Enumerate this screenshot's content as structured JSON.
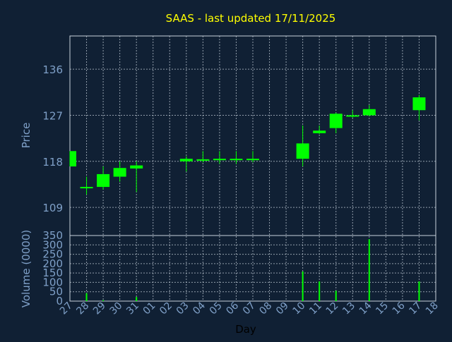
{
  "colors": {
    "background": "#102034",
    "grid": "#c8d2dc",
    "axis_text": "#7fa0c8",
    "title": "#ffff00",
    "candle": "#00ff00"
  },
  "chart_data": [
    {
      "type": "candlestick",
      "title": "SAAS - last updated 17/11/2025",
      "ylabel": "Price",
      "ylim": [
        103.5,
        142.5
      ],
      "yticks": [
        109,
        118,
        127,
        136
      ],
      "categories": [
        "27",
        "28",
        "29",
        "30",
        "31",
        "01",
        "02",
        "03",
        "04",
        "05",
        "06",
        "07",
        "08",
        "09",
        "10",
        "11",
        "12",
        "13",
        "14",
        "15",
        "16",
        "17",
        "18"
      ],
      "candles": [
        {
          "x": "27",
          "open": 117,
          "close": 120,
          "high": 120,
          "low": 117
        },
        {
          "x": "28",
          "open": 113,
          "close": 112.8,
          "high": 115,
          "low": 111.5
        },
        {
          "x": "29",
          "open": 113,
          "close": 115.5,
          "high": 117,
          "low": 112.5
        },
        {
          "x": "30",
          "open": 115,
          "close": 116.7,
          "high": 118,
          "low": 114
        },
        {
          "x": "31",
          "open": 117.2,
          "close": 116.6,
          "high": 118,
          "low": 112
        },
        {
          "x": "03",
          "open": 118.5,
          "close": 118,
          "high": 119,
          "low": 116
        },
        {
          "x": "04",
          "open": 118.4,
          "close": 118.2,
          "high": 120,
          "low": 117.8
        },
        {
          "x": "05",
          "open": 118.5,
          "close": 118.3,
          "high": 120,
          "low": 117.5
        },
        {
          "x": "06",
          "open": 118.5,
          "close": 118.3,
          "high": 120,
          "low": 117.5
        },
        {
          "x": "07",
          "open": 118.5,
          "close": 118.3,
          "high": 120,
          "low": 117.8
        },
        {
          "x": "10",
          "open": 118.5,
          "close": 121.5,
          "high": 125,
          "low": 117
        },
        {
          "x": "11",
          "open": 123.5,
          "close": 124,
          "high": 125,
          "low": 123.3
        },
        {
          "x": "12",
          "open": 124.5,
          "close": 127.3,
          "high": 127.5,
          "low": 123.5
        },
        {
          "x": "13",
          "open": 127,
          "close": 126.8,
          "high": 128,
          "low": 126.5
        },
        {
          "x": "14",
          "open": 127,
          "close": 128.2,
          "high": 129,
          "low": 126.8
        },
        {
          "x": "17",
          "open": 128,
          "close": 130.5,
          "high": 131,
          "low": 126
        }
      ]
    },
    {
      "type": "bar",
      "ylabel": "Volume (0000)",
      "xlabel": "Day",
      "ylim": [
        0,
        350
      ],
      "yticks": [
        0,
        50,
        100,
        150,
        200,
        250,
        300,
        350
      ],
      "categories": [
        "27",
        "28",
        "29",
        "30",
        "31",
        "01",
        "02",
        "03",
        "04",
        "05",
        "06",
        "07",
        "08",
        "09",
        "10",
        "11",
        "12",
        "13",
        "14",
        "15",
        "16",
        "17",
        "18"
      ],
      "volumes": [
        {
          "x": "28",
          "value": 42
        },
        {
          "x": "29",
          "value": 5
        },
        {
          "x": "31",
          "value": 22
        },
        {
          "x": "10",
          "value": 158
        },
        {
          "x": "11",
          "value": 105
        },
        {
          "x": "12",
          "value": 55
        },
        {
          "x": "14",
          "value": 330
        },
        {
          "x": "17",
          "value": 105
        }
      ]
    }
  ]
}
